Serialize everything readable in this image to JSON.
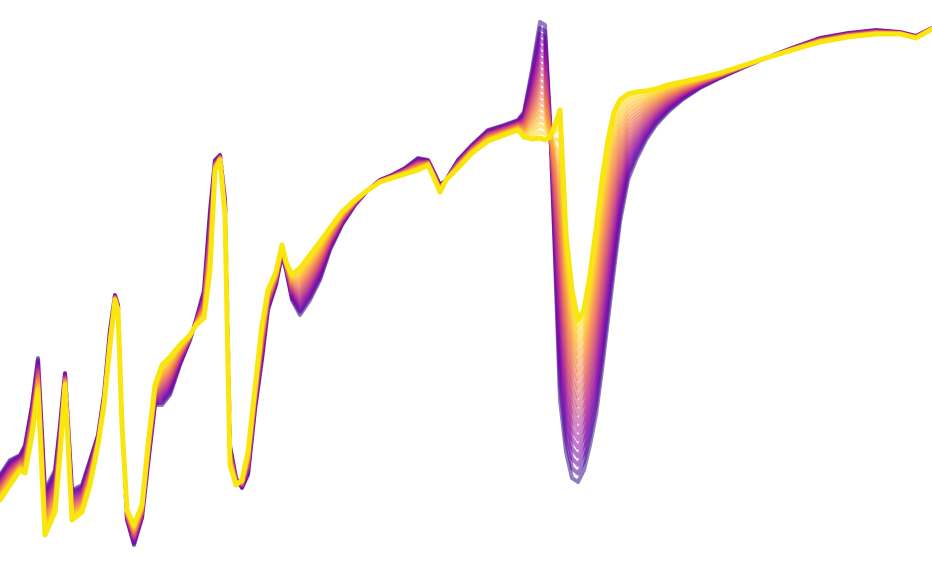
{
  "chart_data": {
    "type": "line",
    "title": "",
    "xlabel": "",
    "ylabel": "",
    "axes_visible": false,
    "grid": false,
    "legend": "none",
    "xlim": [
      0,
      932
    ],
    "ylim": [
      -563,
      0
    ],
    "colormap": {
      "name": "plasma",
      "first_series_color": "#3a0e8c",
      "last_series_color": "#f9e60e",
      "stops": [
        "#3a0e8c",
        "#6a00a8",
        "#8f0da4",
        "#b12a90",
        "#cc4778",
        "#e16462",
        "#f2844b",
        "#fca636",
        "#fcce25",
        "#f9e60e"
      ]
    },
    "n_series": 20,
    "x": [
      0,
      10,
      20,
      25,
      32,
      38,
      45,
      55,
      60,
      65,
      72,
      82,
      90,
      98,
      104,
      110,
      115,
      118,
      122,
      127,
      134,
      142,
      148,
      155,
      162,
      170,
      180,
      190,
      196,
      204,
      210,
      215,
      220,
      225,
      230,
      236,
      242,
      248,
      255,
      262,
      268,
      276,
      282,
      286,
      292,
      300,
      310,
      320,
      330,
      342,
      355,
      368,
      380,
      392,
      405,
      418,
      428,
      434,
      440,
      446,
      458,
      472,
      488,
      504,
      518,
      524,
      532,
      540,
      545,
      550,
      555,
      560,
      566,
      572,
      578,
      584,
      590,
      596,
      602,
      608,
      614,
      620,
      628,
      636,
      646,
      656,
      668,
      682,
      700,
      720,
      742,
      766,
      792,
      820,
      848,
      876,
      900,
      916,
      932
    ],
    "series_first": {
      "name": "",
      "y": [
        -475,
        -460,
        -455,
        -445,
        -405,
        -358,
        -490,
        -470,
        -425,
        -373,
        -490,
        -485,
        -460,
        -435,
        -395,
        -330,
        -295,
        -305,
        -420,
        -520,
        -545,
        -518,
        -465,
        -405,
        -405,
        -395,
        -365,
        -340,
        -320,
        -290,
        -210,
        -160,
        -155,
        -200,
        -445,
        -478,
        -488,
        -475,
        -410,
        -360,
        -310,
        -285,
        -255,
        -270,
        -300,
        -315,
        -300,
        -280,
        -250,
        -225,
        -205,
        -190,
        -180,
        -175,
        -168,
        -158,
        -160,
        -172,
        -185,
        -180,
        -160,
        -145,
        -130,
        -125,
        -120,
        -112,
        -70,
        -22,
        -25,
        -120,
        -260,
        -400,
        -452,
        -478,
        -482,
        -470,
        -445,
        -415,
        -370,
        -320,
        -270,
        -222,
        -180,
        -160,
        -140,
        -125,
        -112,
        -100,
        -88,
        -78,
        -68,
        -58,
        -48,
        -38,
        -33,
        -30,
        -32,
        -36,
        -28
      ]
    },
    "series_last": {
      "name": "",
      "y": [
        -500,
        -485,
        -470,
        -473,
        -435,
        -390,
        -535,
        -512,
        -455,
        -385,
        -520,
        -512,
        -485,
        -445,
        -405,
        -345,
        -300,
        -310,
        -425,
        -510,
        -525,
        -505,
        -445,
        -385,
        -365,
        -357,
        -345,
        -335,
        -325,
        -318,
        -270,
        -170,
        -160,
        -215,
        -465,
        -485,
        -480,
        -452,
        -388,
        -325,
        -290,
        -272,
        -245,
        -262,
        -275,
        -268,
        -255,
        -242,
        -228,
        -212,
        -200,
        -190,
        -182,
        -178,
        -174,
        -170,
        -165,
        -178,
        -192,
        -180,
        -168,
        -153,
        -141,
        -135,
        -130,
        -137,
        -139,
        -138,
        -140,
        -137,
        -125,
        -110,
        -235,
        -290,
        -320,
        -310,
        -275,
        -230,
        -180,
        -140,
        -112,
        -100,
        -94,
        -92,
        -91,
        -89,
        -85,
        -82,
        -78,
        -73,
        -66,
        -58,
        -50,
        -42,
        -37,
        -34,
        -34,
        -38,
        -29
      ]
    }
  }
}
